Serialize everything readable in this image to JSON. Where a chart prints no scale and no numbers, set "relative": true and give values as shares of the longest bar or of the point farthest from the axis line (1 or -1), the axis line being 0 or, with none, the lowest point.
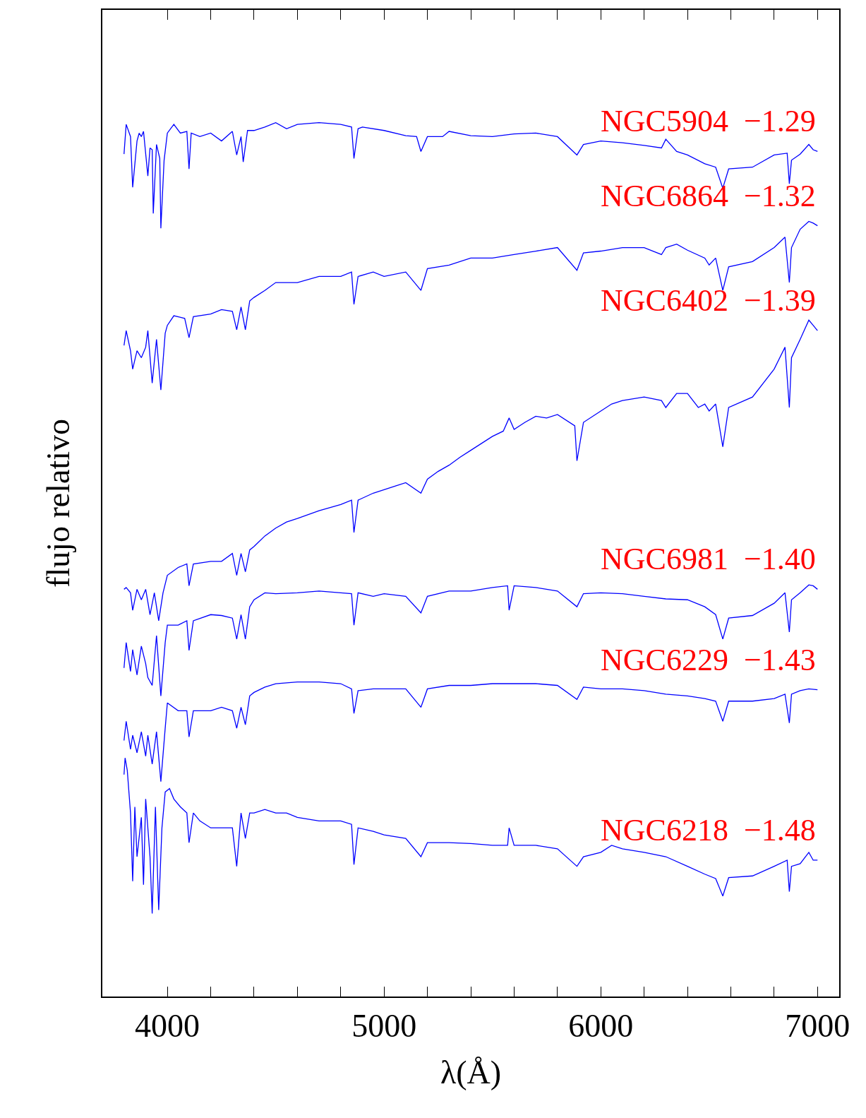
{
  "chart_data": {
    "type": "line",
    "relative": true,
    "xlabel": "λ(Å)",
    "ylabel": "flujo relativo",
    "xlim": [
      3700,
      7100
    ],
    "xticks": [
      4000,
      {
        "value": 4200,
        "label": null
      },
      {
        "value": 4400,
        "label": null
      },
      {
        "value": 4600,
        "label": null
      },
      {
        "value": 4800,
        "label": null
      },
      5000,
      {
        "value": 5200,
        "label": null
      },
      {
        "value": 5400,
        "label": null
      },
      {
        "value": 5600,
        "label": null
      },
      {
        "value": 5800,
        "label": null
      },
      6000,
      {
        "value": 6200,
        "label": null
      },
      {
        "value": 6400,
        "label": null
      },
      {
        "value": 6600,
        "label": null
      },
      {
        "value": 6800,
        "label": null
      },
      7000
    ],
    "legend": false,
    "marker": "none",
    "line_style": "solid",
    "series": [
      {
        "name": "NGC5904  −1.29",
        "color": "#0000ff",
        "x": [
          3800,
          3810,
          3830,
          3840,
          3860,
          3870,
          3880,
          3890,
          3910,
          3920,
          3930,
          3935,
          3950,
          3965,
          3970,
          3985,
          4000,
          4030,
          4060,
          4090,
          4100,
          4110,
          4150,
          4200,
          4250,
          4300,
          4320,
          4340,
          4350,
          4370,
          4400,
          4450,
          4500,
          4550,
          4600,
          4700,
          4800,
          4850,
          4861,
          4880,
          4900,
          5000,
          5100,
          5150,
          5170,
          5200,
          5270,
          5300,
          5400,
          5500,
          5600,
          5700,
          5800,
          5890,
          5920,
          6000,
          6100,
          6200,
          6280,
          6300,
          6350,
          6400,
          6480,
          6530,
          6563,
          6590,
          6700,
          6800,
          6860,
          6870,
          6880,
          6920,
          6960,
          6980,
          7000
        ],
        "values": [
          0.964,
          0.998,
          0.984,
          0.926,
          0.979,
          0.988,
          0.984,
          0.99,
          0.939,
          0.971,
          0.969,
          0.896,
          0.975,
          0.959,
          0.879,
          0.957,
          0.988,
          0.998,
          0.988,
          0.99,
          0.947,
          0.988,
          0.984,
          0.988,
          0.979,
          0.99,
          0.963,
          0.984,
          0.955,
          0.991,
          0.991,
          0.995,
          1,
          0.993,
          0.998,
          1,
          0.998,
          0.995,
          0.959,
          0.993,
          0.995,
          0.991,
          0.985,
          0.984,
          0.967,
          0.984,
          0.984,
          0.99,
          0.985,
          0.984,
          0.987,
          0.988,
          0.984,
          0.963,
          0.975,
          0.979,
          0.977,
          0.974,
          0.971,
          0.981,
          0.967,
          0.963,
          0.953,
          0.949,
          0.925,
          0.947,
          0.949,
          0.963,
          0.965,
          0.93,
          0.957,
          0.964,
          0.975,
          0.969,
          0.967
        ]
      },
      {
        "name": "NGC6864  −1.32",
        "color": "#0000ff",
        "x": [
          3800,
          3810,
          3830,
          3840,
          3860,
          3880,
          3900,
          3910,
          3930,
          3950,
          3970,
          3990,
          4000,
          4030,
          4080,
          4100,
          4120,
          4200,
          4250,
          4300,
          4320,
          4340,
          4360,
          4380,
          4400,
          4450,
          4500,
          4600,
          4700,
          4800,
          4850,
          4861,
          4880,
          4950,
          5000,
          5100,
          5170,
          5200,
          5300,
          5400,
          5500,
          5600,
          5700,
          5800,
          5890,
          5920,
          6000,
          6100,
          6200,
          6280,
          6300,
          6350,
          6400,
          6480,
          6500,
          6530,
          6563,
          6590,
          6700,
          6800,
          6850,
          6870,
          6880,
          6920,
          6960,
          6980,
          7000
        ],
        "values": [
          0.745,
          0.762,
          0.739,
          0.718,
          0.739,
          0.731,
          0.743,
          0.762,
          0.702,
          0.752,
          0.694,
          0.759,
          0.768,
          0.779,
          0.776,
          0.754,
          0.778,
          0.781,
          0.786,
          0.784,
          0.763,
          0.789,
          0.763,
          0.796,
          0.8,
          0.808,
          0.817,
          0.817,
          0.824,
          0.824,
          0.829,
          0.792,
          0.824,
          0.829,
          0.824,
          0.829,
          0.808,
          0.833,
          0.837,
          0.845,
          0.845,
          0.849,
          0.853,
          0.857,
          0.831,
          0.851,
          0.853,
          0.857,
          0.857,
          0.849,
          0.857,
          0.861,
          0.854,
          0.845,
          0.837,
          0.845,
          0.808,
          0.835,
          0.841,
          0.857,
          0.869,
          0.817,
          0.857,
          0.878,
          0.887,
          0.885,
          0.882
        ]
      },
      {
        "name": "NGC6402  −1.39",
        "color": "#0000ff",
        "x": [
          3800,
          3810,
          3830,
          3840,
          3860,
          3880,
          3900,
          3920,
          3940,
          3960,
          3980,
          4000,
          4050,
          4090,
          4100,
          4120,
          4200,
          4250,
          4300,
          4320,
          4340,
          4360,
          4380,
          4400,
          4450,
          4500,
          4550,
          4600,
          4700,
          4800,
          4850,
          4861,
          4880,
          4950,
          5000,
          5050,
          5100,
          5170,
          5200,
          5250,
          5300,
          5350,
          5400,
          5500,
          5550,
          5577,
          5600,
          5650,
          5700,
          5750,
          5800,
          5880,
          5890,
          5920,
          6000,
          6050,
          6100,
          6200,
          6280,
          6300,
          6350,
          6400,
          6450,
          6480,
          6500,
          6530,
          6563,
          6590,
          6700,
          6800,
          6850,
          6870,
          6880,
          6920,
          6960,
          6980,
          7000
        ],
        "values": [
          0.466,
          0.468,
          0.462,
          0.442,
          0.466,
          0.454,
          0.466,
          0.437,
          0.462,
          0.43,
          0.462,
          0.482,
          0.491,
          0.495,
          0.47,
          0.495,
          0.498,
          0.498,
          0.507,
          0.482,
          0.507,
          0.486,
          0.511,
          0.515,
          0.527,
          0.536,
          0.543,
          0.547,
          0.556,
          0.563,
          0.568,
          0.531,
          0.568,
          0.576,
          0.58,
          0.584,
          0.588,
          0.576,
          0.592,
          0.601,
          0.608,
          0.617,
          0.625,
          0.641,
          0.647,
          0.662,
          0.649,
          0.657,
          0.664,
          0.662,
          0.666,
          0.653,
          0.613,
          0.657,
          0.67,
          0.678,
          0.682,
          0.686,
          0.682,
          0.674,
          0.69,
          0.69,
          0.674,
          0.678,
          0.67,
          0.678,
          0.629,
          0.674,
          0.686,
          0.718,
          0.743,
          0.674,
          0.731,
          0.752,
          0.774,
          0.768,
          0.762
        ]
      },
      {
        "name": "NGC6981  −1.40",
        "color": "#0000ff",
        "x": [
          3800,
          3810,
          3830,
          3840,
          3860,
          3880,
          3900,
          3910,
          3930,
          3950,
          3970,
          3990,
          4000,
          4050,
          4090,
          4100,
          4120,
          4200,
          4250,
          4300,
          4320,
          4340,
          4360,
          4380,
          4400,
          4450,
          4500,
          4600,
          4700,
          4800,
          4850,
          4861,
          4880,
          4950,
          5000,
          5100,
          5170,
          5200,
          5300,
          5400,
          5500,
          5570,
          5577,
          5600,
          5700,
          5800,
          5890,
          5920,
          6000,
          6100,
          6200,
          6300,
          6400,
          6480,
          6530,
          6563,
          6590,
          6700,
          6800,
          6850,
          6870,
          6880,
          6920,
          6960,
          6980,
          7000
        ],
        "values": [
          0.376,
          0.405,
          0.372,
          0.397,
          0.368,
          0.401,
          0.381,
          0.365,
          0.356,
          0.413,
          0.344,
          0.405,
          0.425,
          0.425,
          0.43,
          0.396,
          0.43,
          0.437,
          0.436,
          0.433,
          0.409,
          0.437,
          0.409,
          0.446,
          0.454,
          0.462,
          0.461,
          0.462,
          0.464,
          0.462,
          0.461,
          0.425,
          0.462,
          0.458,
          0.461,
          0.458,
          0.439,
          0.458,
          0.464,
          0.464,
          0.468,
          0.47,
          0.442,
          0.47,
          0.468,
          0.464,
          0.446,
          0.461,
          0.462,
          0.461,
          0.458,
          0.455,
          0.454,
          0.446,
          0.437,
          0.409,
          0.433,
          0.436,
          0.45,
          0.462,
          0.417,
          0.454,
          0.462,
          0.471,
          0.47,
          0.466
        ]
      },
      {
        "name": "NGC6229  −1.43",
        "color": "#0000ff",
        "x": [
          3800,
          3810,
          3830,
          3840,
          3860,
          3880,
          3900,
          3910,
          3930,
          3950,
          3970,
          3990,
          4000,
          4050,
          4090,
          4100,
          4120,
          4200,
          4250,
          4300,
          4320,
          4340,
          4360,
          4380,
          4400,
          4450,
          4500,
          4600,
          4700,
          4800,
          4850,
          4861,
          4880,
          4950,
          5000,
          5100,
          5170,
          5200,
          5300,
          5400,
          5500,
          5600,
          5700,
          5800,
          5890,
          5920,
          6000,
          6100,
          6200,
          6300,
          6400,
          6480,
          6530,
          6563,
          6590,
          6700,
          6800,
          6850,
          6870,
          6880,
          6920,
          6960,
          7000
        ],
        "values": [
          0.293,
          0.315,
          0.283,
          0.299,
          0.279,
          0.303,
          0.275,
          0.299,
          0.266,
          0.303,
          0.246,
          0.307,
          0.336,
          0.327,
          0.327,
          0.297,
          0.327,
          0.327,
          0.331,
          0.327,
          0.307,
          0.331,
          0.311,
          0.344,
          0.348,
          0.354,
          0.358,
          0.36,
          0.36,
          0.358,
          0.352,
          0.324,
          0.35,
          0.352,
          0.352,
          0.352,
          0.331,
          0.352,
          0.356,
          0.356,
          0.358,
          0.358,
          0.358,
          0.356,
          0.34,
          0.354,
          0.352,
          0.352,
          0.35,
          0.346,
          0.344,
          0.341,
          0.338,
          0.315,
          0.338,
          0.338,
          0.341,
          0.346,
          0.313,
          0.346,
          0.35,
          0.352,
          0.351
        ]
      },
      {
        "name": "NGC6218  −1.48",
        "color": "#0000ff",
        "x": [
          3800,
          3805,
          3815,
          3830,
          3840,
          3850,
          3860,
          3880,
          3890,
          3900,
          3920,
          3930,
          3945,
          3960,
          3975,
          3990,
          4010,
          4030,
          4060,
          4090,
          4100,
          4120,
          4150,
          4200,
          4250,
          4300,
          4320,
          4340,
          4360,
          4380,
          4400,
          4450,
          4500,
          4550,
          4600,
          4700,
          4800,
          4850,
          4861,
          4880,
          4950,
          5000,
          5100,
          5170,
          5200,
          5300,
          5400,
          5500,
          5570,
          5577,
          5600,
          5700,
          5800,
          5890,
          5920,
          6000,
          6050,
          6100,
          6200,
          6300,
          6400,
          6480,
          6530,
          6563,
          6590,
          6700,
          6800,
          6860,
          6870,
          6880,
          6920,
          6960,
          6980,
          7000
        ],
        "values": [
          0.254,
          0.273,
          0.259,
          0.21,
          0.132,
          0.217,
          0.16,
          0.205,
          0.128,
          0.226,
          0.16,
          0.095,
          0.217,
          0.099,
          0.193,
          0.234,
          0.238,
          0.226,
          0.217,
          0.21,
          0.176,
          0.21,
          0.201,
          0.193,
          0.193,
          0.193,
          0.149,
          0.21,
          0.181,
          0.21,
          0.21,
          0.214,
          0.21,
          0.21,
          0.205,
          0.201,
          0.201,
          0.197,
          0.151,
          0.193,
          0.189,
          0.185,
          0.181,
          0.16,
          0.176,
          0.176,
          0.175,
          0.173,
          0.173,
          0.193,
          0.173,
          0.173,
          0.169,
          0.149,
          0.16,
          0.165,
          0.173,
          0.169,
          0.165,
          0.16,
          0.149,
          0.14,
          0.135,
          0.115,
          0.136,
          0.138,
          0.149,
          0.156,
          0.12,
          0.149,
          0.152,
          0.165,
          0.156,
          0.156
        ]
      }
    ]
  }
}
